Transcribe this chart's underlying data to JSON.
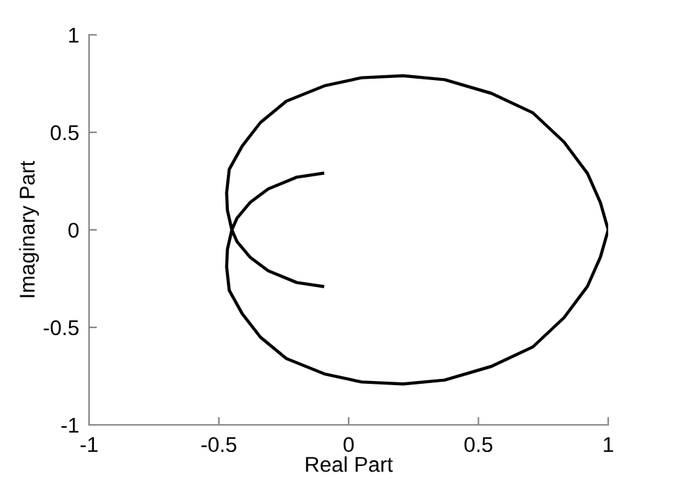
{
  "chart_data": {
    "type": "line",
    "xlabel": "Real Part",
    "ylabel": "Imaginary Part",
    "xlim": [
      -1,
      1
    ],
    "ylim": [
      -1,
      1
    ],
    "xticks": [
      -1,
      -0.5,
      0,
      0.5,
      1
    ],
    "yticks": [
      -1,
      -0.5,
      0,
      0.5,
      1
    ],
    "grid": false,
    "marker": "none",
    "line_style": "solid",
    "series": [
      {
        "color": "#000000",
        "x": [
          -0.1,
          -0.2,
          -0.31,
          -0.38,
          -0.43,
          -0.45,
          -0.467,
          -0.47,
          -0.46,
          -0.41,
          -0.34,
          -0.24,
          -0.09,
          0.05,
          0.21,
          0.37,
          0.55,
          0.71,
          0.83,
          0.92,
          0.97,
          1.0,
          0.97,
          0.92,
          0.83,
          0.71,
          0.55,
          0.37,
          0.21,
          0.05,
          -0.09,
          -0.24,
          -0.34,
          -0.41,
          -0.46,
          -0.47,
          -0.467,
          -0.45,
          -0.43,
          -0.38,
          -0.31,
          -0.2,
          -0.1
        ],
        "values": [
          0.29,
          0.27,
          0.21,
          0.14,
          0.06,
          0,
          -0.1,
          -0.19,
          -0.31,
          -0.43,
          -0.55,
          -0.66,
          -0.74,
          -0.78,
          -0.79,
          -0.77,
          -0.7,
          -0.6,
          -0.45,
          -0.29,
          -0.14,
          0,
          0.14,
          0.29,
          0.45,
          0.6,
          0.7,
          0.77,
          0.79,
          0.78,
          0.74,
          0.66,
          0.55,
          0.43,
          0.31,
          0.19,
          0.1,
          0,
          -0.06,
          -0.14,
          -0.21,
          -0.27,
          -0.29
        ]
      }
    ]
  }
}
